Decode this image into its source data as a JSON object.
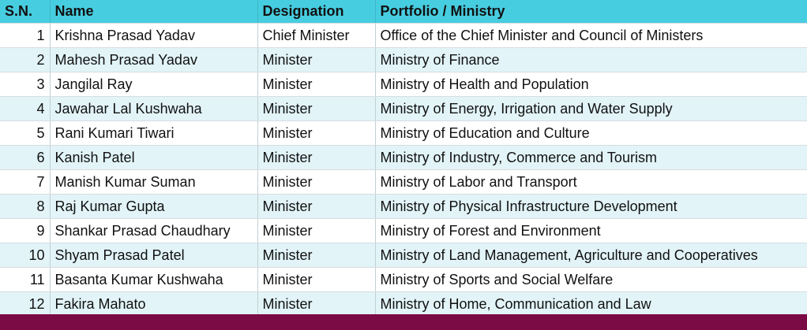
{
  "table": {
    "headers": [
      "S.N.",
      "Name",
      "Designation",
      "Portfolio / Ministry"
    ],
    "rows": [
      {
        "sn": "1",
        "name": "Krishna Prasad Yadav",
        "designation": "Chief Minister",
        "portfolio": "Office of the Chief Minister and Council of Ministers"
      },
      {
        "sn": "2",
        "name": "Mahesh Prasad Yadav",
        "designation": "Minister",
        "portfolio": "Ministry of Finance"
      },
      {
        "sn": "3",
        "name": "Jangilal Ray",
        "designation": "Minister",
        "portfolio": "Ministry of Health and Population"
      },
      {
        "sn": "4",
        "name": "Jawahar Lal Kushwaha",
        "designation": "Minister",
        "portfolio": "Ministry of Energy, Irrigation and Water Supply"
      },
      {
        "sn": "5",
        "name": "Rani Kumari Tiwari",
        "designation": "Minister",
        "portfolio": "Ministry of Education and Culture"
      },
      {
        "sn": "6",
        "name": "Kanish Patel",
        "designation": "Minister",
        "portfolio": "Ministry of Industry, Commerce and Tourism"
      },
      {
        "sn": "7",
        "name": "Manish Kumar Suman",
        "designation": "Minister",
        "portfolio": "Ministry of Labor and Transport"
      },
      {
        "sn": "8",
        "name": "Raj Kumar Gupta",
        "designation": "Minister",
        "portfolio": "Ministry of Physical Infrastructure Development"
      },
      {
        "sn": "9",
        "name": "Shankar Prasad Chaudhary",
        "designation": "Minister",
        "portfolio": "Ministry of Forest and Environment"
      },
      {
        "sn": "10",
        "name": "Shyam Prasad Patel",
        "designation": "Minister",
        "portfolio": "Ministry of Land Management, Agriculture and Cooperatives"
      },
      {
        "sn": "11",
        "name": "Basanta Kumar Kushwaha",
        "designation": "Minister",
        "portfolio": "Ministry of Sports and Social Welfare"
      },
      {
        "sn": "12",
        "name": "Fakira Mahato",
        "designation": "Minister",
        "portfolio": "Ministry of Home, Communication and Law"
      }
    ]
  },
  "colors": {
    "header_bg": "#47cde0",
    "alt_row_bg": "#e2f4f8",
    "footer_bar": "#7b0b44"
  }
}
